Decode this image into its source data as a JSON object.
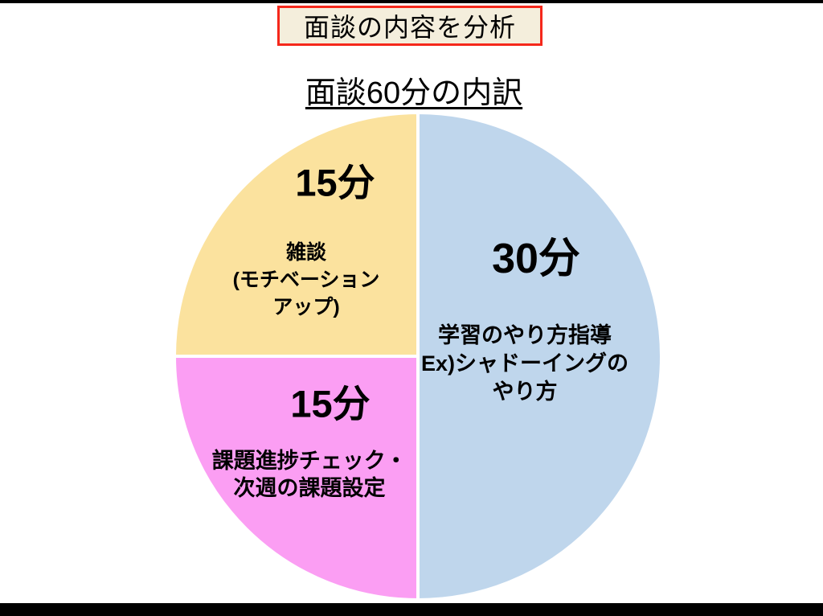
{
  "header": {
    "title": "面談の内容を分析",
    "subtitle": "面談60分の内訳"
  },
  "colors": {
    "title_box_background": "#f4eedc",
    "title_box_border": "#f5281b",
    "slice_blue": "#bfd6ec",
    "slice_yellow": "#fbe29e",
    "slice_pink": "#fb9ef3",
    "slice_divider": "#ffffff",
    "frame_bars": "#000000"
  },
  "chart_data": {
    "type": "pie",
    "title": "面談60分の内訳",
    "unit": "分",
    "total": 60,
    "start_angle_deg": -90,
    "direction": "clockwise",
    "legend_position": "none",
    "slices": [
      {
        "slug": "study-method-guidance",
        "label": "学習のやり方指導 Ex)シャドーイングのやり方",
        "value": 30,
        "value_label": "30分",
        "desc": "学習のやり方指導\nEx)シャドーイングの\nやり方",
        "color": "#bfd6ec"
      },
      {
        "slug": "task-progress-check",
        "label": "課題進捗チェック・次週の課題設定",
        "value": 15,
        "value_label": "15分",
        "desc": "課題進捗チェック・\n次週の課題設定",
        "color": "#fb9ef3"
      },
      {
        "slug": "chat-motivation-up",
        "label": "雑談（モチベーションアップ）",
        "value": 15,
        "value_label": "15分",
        "desc": "雑談\n(モチベーション\nアップ)",
        "color": "#fbe29e"
      }
    ]
  }
}
